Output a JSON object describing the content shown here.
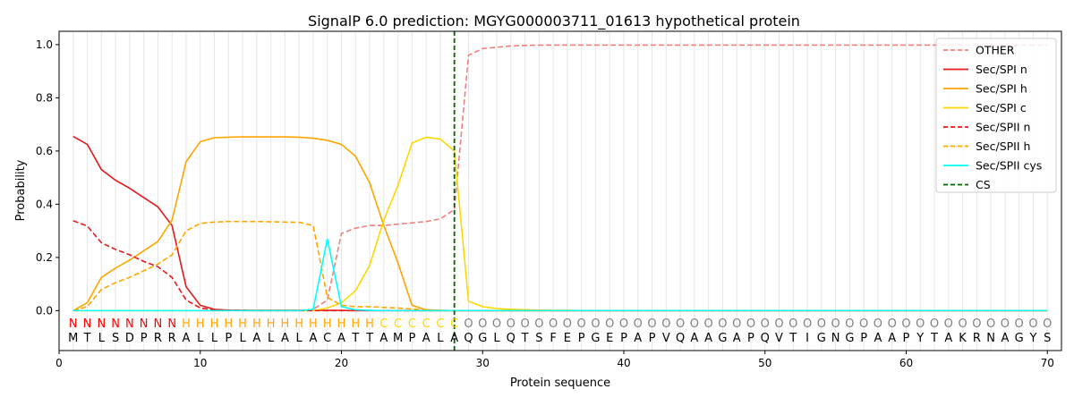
{
  "chart_data": {
    "type": "line",
    "title": "SignalP 6.0 prediction: MGYG000003711_01613 hypothetical protein",
    "xlabel": "Protein sequence",
    "ylabel": "Probability",
    "xlim": [
      0,
      71
    ],
    "ylim": [
      -0.15,
      1.05
    ],
    "xticks": [
      0,
      10,
      20,
      30,
      40,
      50,
      60,
      70
    ],
    "yticks": [
      0.0,
      0.2,
      0.4,
      0.6,
      0.8,
      1.0
    ],
    "grid": "vertical lines at each residue",
    "legend_position": "top-right",
    "sequence": [
      "M",
      "T",
      "L",
      "S",
      "D",
      "P",
      "R",
      "R",
      "A",
      "L",
      "L",
      "P",
      "L",
      "A",
      "L",
      "A",
      "L",
      "A",
      "C",
      "A",
      "T",
      "T",
      "A",
      "M",
      "P",
      "A",
      "L",
      "A",
      "Q",
      "G",
      "L",
      "Q",
      "T",
      "S",
      "F",
      "E",
      "P",
      "G",
      "E",
      "P",
      "A",
      "P",
      "V",
      "Q",
      "A",
      "A",
      "G",
      "A",
      "P",
      "Q",
      "V",
      "T",
      "I",
      "G",
      "N",
      "G",
      "P",
      "A",
      "A",
      "P",
      "Y",
      "T",
      "A",
      "K",
      "R",
      "N",
      "A",
      "G",
      "Y",
      "S"
    ],
    "region_labels": [
      "N",
      "N",
      "N",
      "N",
      "N",
      "N",
      "N",
      "N",
      "H",
      "H",
      "H",
      "H",
      "H",
      "H",
      "H",
      "H",
      "H",
      "H",
      "H",
      "H",
      "H",
      "H",
      "C",
      "C",
      "C",
      "C",
      "C",
      "C",
      "O",
      "O",
      "O",
      "O",
      "O",
      "O",
      "O",
      "O",
      "O",
      "O",
      "O",
      "O",
      "O",
      "O",
      "O",
      "O",
      "O",
      "O",
      "O",
      "O",
      "O",
      "O",
      "O",
      "O",
      "O",
      "O",
      "O",
      "O",
      "O",
      "O",
      "O",
      "O",
      "O",
      "O",
      "O",
      "O",
      "O",
      "O",
      "O",
      "O",
      "O",
      "O"
    ],
    "region_colors": {
      "N": "#ff0000",
      "H": "#ffa500",
      "C": "#ffd700",
      "O": "#808080"
    },
    "cs_position": 28,
    "series": [
      {
        "name": "OTHER",
        "color": "#f08080",
        "dash": "dashed",
        "values": [
          0.0,
          0.0,
          0.0,
          0.0,
          0.0,
          0.0,
          0.0,
          0.0,
          0.0,
          0.0,
          0.0,
          0.0,
          0.0,
          0.0,
          0.0,
          0.0,
          0.0,
          0.005,
          0.04,
          0.29,
          0.31,
          0.32,
          0.32,
          0.325,
          0.33,
          0.335,
          0.345,
          0.38,
          0.96,
          0.985,
          0.99,
          0.995,
          0.997,
          0.998,
          0.998,
          0.998,
          0.998,
          0.998,
          0.998,
          0.998,
          0.998,
          0.998,
          0.998,
          0.998,
          0.998,
          0.998,
          0.998,
          0.998,
          0.998,
          0.998,
          0.998,
          0.998,
          0.998,
          0.998,
          0.998,
          0.998,
          0.998,
          0.998,
          0.998,
          0.998,
          0.998,
          0.998,
          0.998,
          0.998,
          0.998,
          0.998,
          0.998,
          0.998,
          0.998,
          0.998
        ]
      },
      {
        "name": "Sec/SPI n",
        "color": "#e31a1c",
        "dash": "solid",
        "values": [
          0.655,
          0.625,
          0.53,
          0.49,
          0.46,
          0.425,
          0.39,
          0.32,
          0.09,
          0.02,
          0.005,
          0.002,
          0.001,
          0.001,
          0.001,
          0.001,
          0.001,
          0.001,
          0.001,
          0.001,
          0.0,
          0.0,
          0.0,
          0.0,
          0.0,
          0.0,
          0.0,
          0.0,
          0.0,
          0.0,
          0.0,
          0.0,
          0.0,
          0.0,
          0.0,
          0.0,
          0.0,
          0.0,
          0.0,
          0.0,
          0.0,
          0.0,
          0.0,
          0.0,
          0.0,
          0.0,
          0.0,
          0.0,
          0.0,
          0.0,
          0.0,
          0.0,
          0.0,
          0.0,
          0.0,
          0.0,
          0.0,
          0.0,
          0.0,
          0.0,
          0.0,
          0.0,
          0.0,
          0.0,
          0.0,
          0.0,
          0.0,
          0.0,
          0.0,
          0.0
        ]
      },
      {
        "name": "Sec/SPI h",
        "color": "#ffa500",
        "dash": "solid",
        "values": [
          0.0,
          0.03,
          0.125,
          0.16,
          0.19,
          0.225,
          0.26,
          0.34,
          0.56,
          0.635,
          0.65,
          0.652,
          0.653,
          0.653,
          0.653,
          0.653,
          0.652,
          0.648,
          0.64,
          0.625,
          0.58,
          0.48,
          0.32,
          0.18,
          0.02,
          0.003,
          0.001,
          0.0,
          0.0,
          0.0,
          0.0,
          0.0,
          0.0,
          0.0,
          0.0,
          0.0,
          0.0,
          0.0,
          0.0,
          0.0,
          0.0,
          0.0,
          0.0,
          0.0,
          0.0,
          0.0,
          0.0,
          0.0,
          0.0,
          0.0,
          0.0,
          0.0,
          0.0,
          0.0,
          0.0,
          0.0,
          0.0,
          0.0,
          0.0,
          0.0,
          0.0,
          0.0,
          0.0,
          0.0,
          0.0,
          0.0,
          0.0,
          0.0,
          0.0,
          0.0
        ]
      },
      {
        "name": "Sec/SPI c",
        "color": "#ffd700",
        "dash": "solid",
        "values": [
          0.0,
          0.0,
          0.0,
          0.0,
          0.0,
          0.0,
          0.0,
          0.0,
          0.0,
          0.0,
          0.0,
          0.0,
          0.0,
          0.0,
          0.0,
          0.0,
          0.0,
          0.0,
          0.01,
          0.03,
          0.075,
          0.17,
          0.34,
          0.47,
          0.63,
          0.652,
          0.645,
          0.6,
          0.035,
          0.015,
          0.008,
          0.005,
          0.003,
          0.002,
          0.001,
          0.001,
          0.0,
          0.0,
          0.0,
          0.0,
          0.0,
          0.0,
          0.0,
          0.0,
          0.0,
          0.0,
          0.0,
          0.0,
          0.0,
          0.0,
          0.0,
          0.0,
          0.0,
          0.0,
          0.0,
          0.0,
          0.0,
          0.0,
          0.0,
          0.0,
          0.0,
          0.0,
          0.0,
          0.0,
          0.0,
          0.0,
          0.0,
          0.0,
          0.0,
          0.0
        ]
      },
      {
        "name": "Sec/SPII n",
        "color": "#e31a1c",
        "dash": "dashed",
        "values": [
          0.338,
          0.318,
          0.255,
          0.23,
          0.21,
          0.185,
          0.165,
          0.125,
          0.04,
          0.01,
          0.003,
          0.001,
          0.001,
          0.0,
          0.0,
          0.0,
          0.0,
          0.0,
          0.0,
          0.0,
          0.0,
          0.0,
          0.0,
          0.0,
          0.0,
          0.0,
          0.0,
          0.0,
          0.0,
          0.0,
          0.0,
          0.0,
          0.0,
          0.0,
          0.0,
          0.0,
          0.0,
          0.0,
          0.0,
          0.0,
          0.0,
          0.0,
          0.0,
          0.0,
          0.0,
          0.0,
          0.0,
          0.0,
          0.0,
          0.0,
          0.0,
          0.0,
          0.0,
          0.0,
          0.0,
          0.0,
          0.0,
          0.0,
          0.0,
          0.0,
          0.0,
          0.0,
          0.0,
          0.0,
          0.0,
          0.0,
          0.0,
          0.0,
          0.0,
          0.0
        ]
      },
      {
        "name": "Sec/SPII h",
        "color": "#ffa500",
        "dash": "dashed",
        "values": [
          0.0,
          0.015,
          0.08,
          0.105,
          0.125,
          0.15,
          0.175,
          0.21,
          0.3,
          0.328,
          0.333,
          0.335,
          0.335,
          0.335,
          0.334,
          0.333,
          0.332,
          0.32,
          0.05,
          0.02,
          0.015,
          0.015,
          0.012,
          0.01,
          0.006,
          0.003,
          0.001,
          0.0,
          0.0,
          0.0,
          0.0,
          0.0,
          0.0,
          0.0,
          0.0,
          0.0,
          0.0,
          0.0,
          0.0,
          0.0,
          0.0,
          0.0,
          0.0,
          0.0,
          0.0,
          0.0,
          0.0,
          0.0,
          0.0,
          0.0,
          0.0,
          0.0,
          0.0,
          0.0,
          0.0,
          0.0,
          0.0,
          0.0,
          0.0,
          0.0,
          0.0,
          0.0,
          0.0,
          0.0,
          0.0,
          0.0,
          0.0,
          0.0,
          0.0,
          0.0
        ]
      },
      {
        "name": "Sec/SPII cys",
        "color": "#00ffff",
        "dash": "solid",
        "values": [
          0.0,
          0.0,
          0.0,
          0.0,
          0.0,
          0.0,
          0.0,
          0.0,
          0.0,
          0.0,
          0.0,
          0.0,
          0.0,
          0.0,
          0.0,
          0.0,
          0.0,
          0.005,
          0.27,
          0.015,
          0.003,
          0.001,
          0.0,
          0.0,
          0.0,
          0.0,
          0.0,
          0.0,
          0.0,
          0.0,
          0.0,
          0.0,
          0.0,
          0.0,
          0.0,
          0.0,
          0.0,
          0.0,
          0.0,
          0.0,
          0.0,
          0.0,
          0.0,
          0.0,
          0.0,
          0.0,
          0.0,
          0.0,
          0.0,
          0.0,
          0.0,
          0.0,
          0.0,
          0.0,
          0.0,
          0.0,
          0.0,
          0.0,
          0.0,
          0.0,
          0.0,
          0.0,
          0.0,
          0.0,
          0.0,
          0.0,
          0.0,
          0.0,
          0.0,
          0.0
        ]
      },
      {
        "name": "CS",
        "color": "#006400",
        "dash": "dashed",
        "values": []
      }
    ]
  }
}
